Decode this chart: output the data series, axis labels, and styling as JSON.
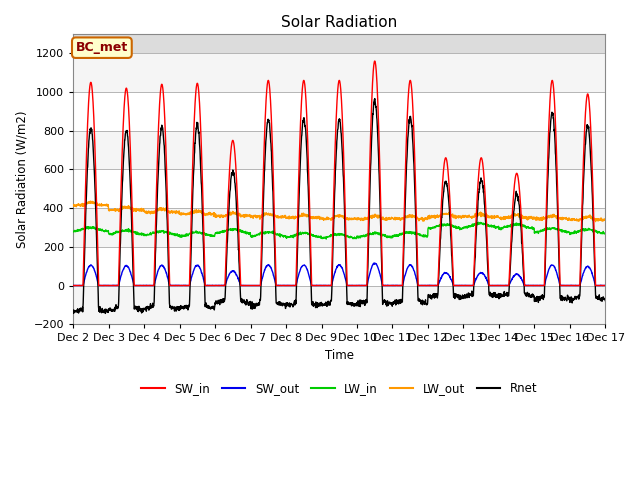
{
  "title": "Solar Radiation",
  "ylabel": "Solar Radiation (W/m2)",
  "xlabel": "Time",
  "ylim": [
    -200,
    1300
  ],
  "yticks": [
    -200,
    0,
    200,
    400,
    600,
    800,
    1000,
    1200
  ],
  "xlim": [
    0,
    15
  ],
  "xtick_labels": [
    "Dec 2",
    "Dec 3",
    "Dec 4",
    "Dec 5",
    "Dec 6",
    "Dec 7",
    "Dec 8",
    "Dec 9",
    "Dec 10",
    "Dec 11",
    "Dec 12",
    "Dec 13",
    "Dec 14",
    "Dec 15",
    "Dec 16",
    "Dec 17"
  ],
  "annotation_text": "BC_met",
  "annotation_bg": "#FFFFCC",
  "annotation_border": "#CC6600",
  "colors": {
    "SW_in": "#FF0000",
    "SW_out": "#0000EE",
    "LW_in": "#00CC00",
    "LW_out": "#FF9900",
    "Rnet": "#000000"
  },
  "grid_color": "#CCCCCC",
  "bg_color": "#DCDCDC",
  "band_color1": "#F0F0F0",
  "band_color2": "#FFFFFF"
}
